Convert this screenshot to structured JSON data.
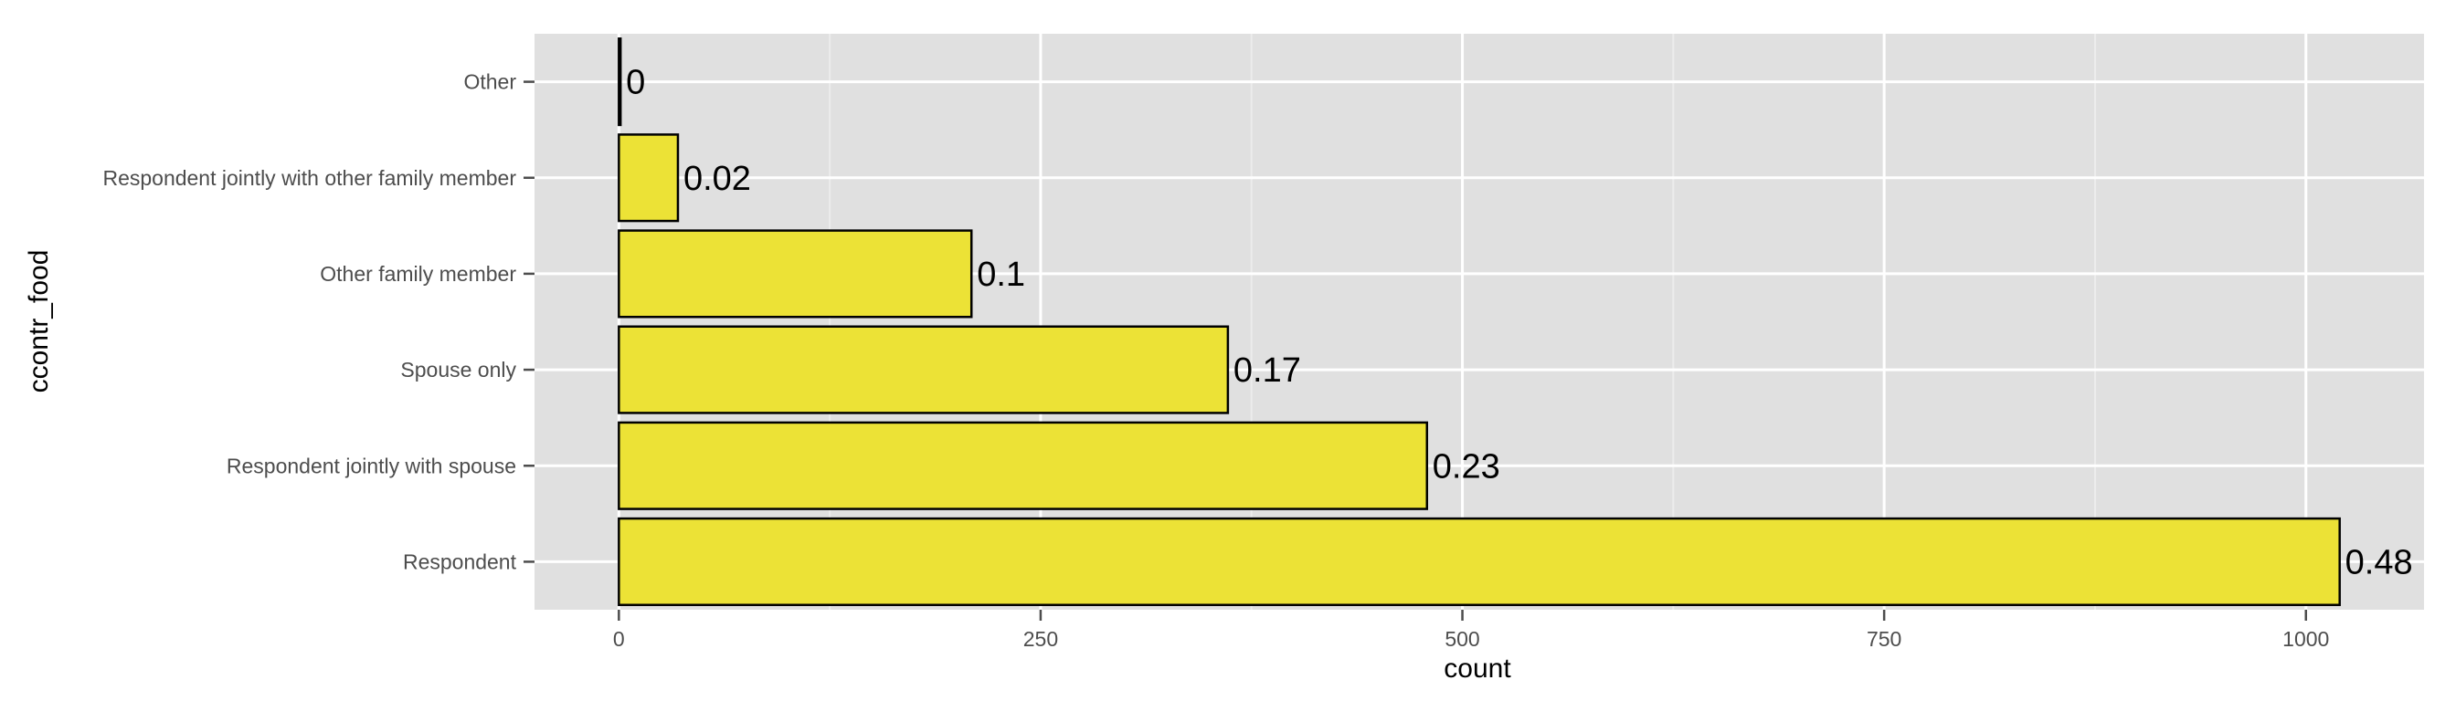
{
  "chart_data": {
    "type": "bar",
    "orientation": "horizontal",
    "categories": [
      "Other",
      "Respondent jointly with other family member",
      "Other family member",
      "Spouse only",
      "Respondent jointly with spouse",
      "Respondent"
    ],
    "values": [
      1,
      35,
      209,
      361,
      479,
      1020
    ],
    "labels": [
      "0",
      "0.02",
      "0.1",
      "0.17",
      "0.23",
      "0.48"
    ],
    "xlabel": "count",
    "ylabel": "ccontr_food",
    "xlim": [
      -50,
      1070
    ],
    "xticks": [
      0,
      250,
      500,
      750,
      1000
    ],
    "xtick_labels": [
      "0",
      "250",
      "500",
      "750",
      "1000"
    ],
    "grid": true,
    "legend": "none",
    "colors": {
      "bar_fill": "#ece236",
      "bar_stroke": "#000000",
      "panel_bg": "#e0e0e0",
      "grid_major": "#ffffff",
      "grid_minor": "#ececec"
    }
  }
}
